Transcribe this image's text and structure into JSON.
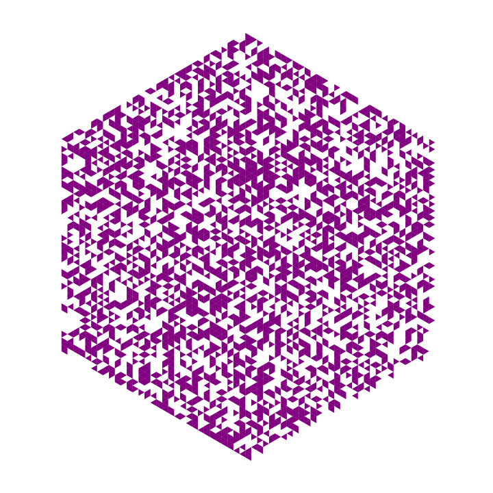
{
  "pattern": {
    "shape": "hexagon",
    "cell_shape": "triangle",
    "fill_color": "#800080",
    "background_color": "#ffffff",
    "fill_density": 0.47,
    "border_density": 0.98,
    "seed": 20240611
  }
}
